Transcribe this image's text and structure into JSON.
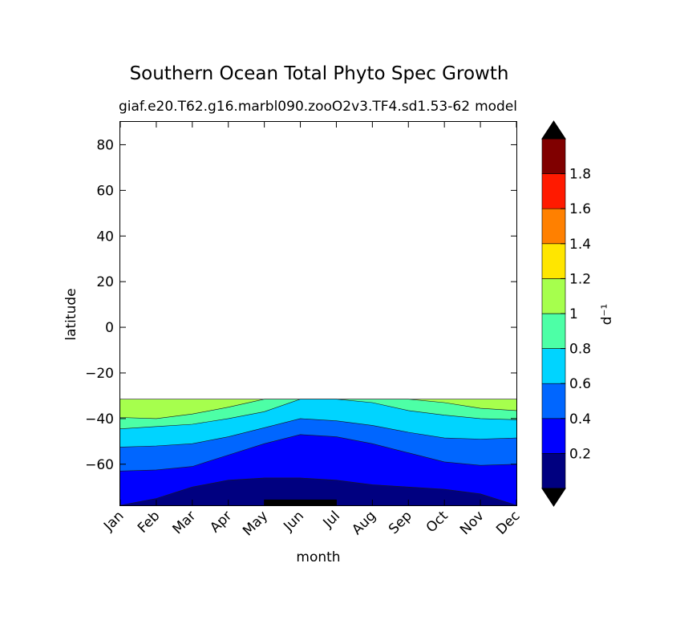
{
  "chart_data": {
    "type": "heatmap",
    "subtype": "filled-contour",
    "title": "Southern Ocean Total Phyto Spec Growth",
    "subtitle_left": "giaf.e20.T62.g16.marbl090.zooO2v3.TF4.sd1.53-62",
    "subtitle_right": "model",
    "xlabel": "month",
    "ylabel": "latitude",
    "x_categories": [
      "Jan",
      "Feb",
      "Mar",
      "Apr",
      "May",
      "Jun",
      "Jul",
      "Aug",
      "Sep",
      "Oct",
      "Nov",
      "Dec"
    ],
    "ylim": [
      -78,
      90
    ],
    "y_ticks": [
      "−60",
      "−40",
      "−20",
      "0",
      "20",
      "40",
      "60",
      "80"
    ],
    "y_tick_values": [
      -60,
      -40,
      -20,
      0,
      20,
      40,
      60,
      80
    ],
    "colorbar": {
      "label": "d⁻¹",
      "tick_labels": [
        "0.2",
        "0.4",
        "0.6",
        "0.8",
        "1",
        "1.2",
        "1.4",
        "1.6",
        "1.8"
      ],
      "levels": [
        0,
        0.2,
        0.4,
        0.6,
        0.8,
        1.0,
        1.2,
        1.4,
        1.6,
        1.8,
        2.0
      ],
      "colors": [
        "#000080",
        "#0000ff",
        "#0066ff",
        "#00d4ff",
        "#4dffa6",
        "#a6ff4d",
        "#ffe600",
        "#ff8000",
        "#ff1a00",
        "#800000"
      ],
      "extend": "both",
      "under_color": "#000000",
      "over_color": "#000000"
    },
    "data_top_latitude": -31.5,
    "contour_boundaries": [
      {
        "level": 0.1,
        "lat": [
          -78,
          -75,
          -70,
          -67,
          -66,
          -66,
          -67,
          -69,
          -70,
          -71,
          -73,
          -78
        ]
      },
      {
        "level": 0.2,
        "lat": [
          -63,
          -62.5,
          -61,
          -56,
          -51,
          -47,
          -48,
          -51,
          -55,
          -59,
          -60.5,
          -60
        ]
      },
      {
        "level": 0.4,
        "lat": [
          -52.5,
          -52,
          -51,
          -48,
          -44,
          -40,
          -41,
          -43,
          -46,
          -48.5,
          -49,
          -48.5
        ]
      },
      {
        "level": 0.6,
        "lat": [
          -44.5,
          -43.5,
          -42.5,
          -40,
          -37,
          -31.5,
          -31.5,
          -33,
          -36.5,
          -38.5,
          -40,
          -40.5
        ]
      },
      {
        "level": 0.8,
        "lat": [
          -39.5,
          -40,
          -38,
          -35,
          -31.5,
          -31.5,
          -31.5,
          -31.5,
          -31.5,
          -33,
          -35.5,
          -36.5
        ]
      },
      {
        "level": 1.0,
        "lat": [
          -31.5,
          -31.5,
          -31.5,
          -31.5,
          -31.5,
          -31.5,
          -31.5,
          -31.5,
          -31.5,
          -31.5,
          -31.5,
          -31.5
        ]
      }
    ],
    "deepest_band": {
      "level": 0.0,
      "lat": -75.5,
      "month_from": 4,
      "month_to": 6
    },
    "grid": false,
    "legend": "colorbar-right"
  }
}
